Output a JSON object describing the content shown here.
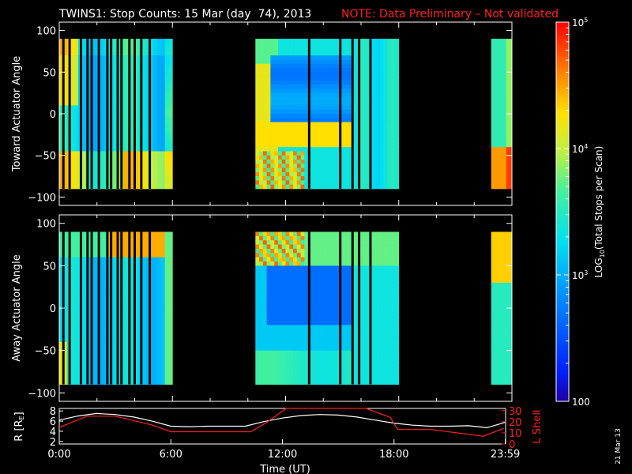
{
  "title": {
    "main": "TWINS1: Stop Counts: 15 Mar (day  74), 2013",
    "note": "NOTE: Data Preliminary – Not validated"
  },
  "date_stamp": "21 Mar 13",
  "colors": {
    "background": "#000000",
    "axis": "#ffffff",
    "note": "#ff2020",
    "lshell_line": "#ff2020",
    "r_line": "#ffffff"
  },
  "chart_data": [
    {
      "type": "heatmap",
      "ylabel": "Toward Actuator Angle",
      "yticks": [
        "100",
        "50",
        "0",
        "−50",
        "−100"
      ],
      "ylim": [
        -110,
        110
      ],
      "data_ylim": [
        -90,
        90
      ],
      "xlim_hours": [
        0,
        24
      ],
      "colorbar": {
        "label": "LOG10(Total Stops per Scan)",
        "ticks": [
          "10^5",
          "10^4",
          "10^3",
          "100"
        ],
        "range": [
          100,
          100000
        ],
        "scale": "log"
      },
      "data_intervals_hours": [
        [
          0.0,
          6.0
        ],
        [
          10.4,
          18.0
        ],
        [
          22.9,
          24.0
        ]
      ],
      "gap_columns_hours": [
        0.22,
        0.55,
        1.15,
        1.5,
        1.72,
        2.1,
        2.55,
        2.75,
        3.1,
        3.3,
        3.72,
        4.0,
        4.35,
        4.8,
        13.25,
        14.9,
        15.55,
        15.9,
        16.5
      ]
    },
    {
      "type": "heatmap",
      "ylabel": "Away Actuator Angle",
      "yticks": [
        "100",
        "50",
        "0",
        "−50",
        "−100"
      ],
      "ylim": [
        -110,
        110
      ],
      "data_ylim": [
        -90,
        90
      ],
      "xlim_hours": [
        0,
        24
      ],
      "data_intervals_hours": [
        [
          0.0,
          6.0
        ],
        [
          10.4,
          18.0
        ],
        [
          22.9,
          24.0
        ]
      ],
      "gap_columns_hours": [
        0.22,
        0.55,
        1.15,
        1.5,
        1.72,
        2.1,
        2.55,
        2.75,
        3.1,
        3.3,
        3.72,
        4.0,
        4.35,
        4.8,
        13.25,
        14.9,
        15.55,
        15.9,
        16.5
      ]
    },
    {
      "type": "line",
      "xlabel": "Time (UT)",
      "xticks": [
        "0:00",
        "6:00",
        "12:00",
        "18:00",
        "23:59"
      ],
      "xlim_hours": [
        0,
        24
      ],
      "ylabel_left": "R [R",
      "ylabel_left_sub": "E",
      "ylabel_left_close": "]",
      "yticks_left": [
        "8",
        "6",
        "4",
        "2"
      ],
      "ylim_left": [
        1.5,
        8.5
      ],
      "ylabel_right": "L Shell",
      "yticks_right": [
        "30",
        "20",
        "10",
        "0"
      ],
      "ylim_right": [
        0,
        32
      ],
      "series": [
        {
          "name": "R [RE]",
          "axis": "left",
          "x": [
            0,
            1,
            2,
            3,
            4,
            5,
            6,
            7,
            8,
            9,
            10,
            11,
            12,
            13,
            14,
            15,
            16,
            17,
            18,
            19,
            20,
            21,
            22,
            23,
            24
          ],
          "y": [
            6.2,
            7.0,
            7.5,
            7.3,
            6.8,
            6.0,
            5.0,
            4.9,
            5.0,
            5.0,
            5.0,
            5.9,
            6.6,
            7.1,
            7.3,
            7.2,
            6.8,
            6.2,
            5.6,
            5.2,
            5.0,
            5.0,
            5.1,
            4.7,
            5.8
          ]
        },
        {
          "name": "L Shell",
          "axis": "right",
          "x": [
            0,
            1.5,
            3,
            5,
            6,
            8,
            10.3,
            11.2,
            12.2,
            13.5,
            16.5,
            17.8,
            18.2,
            20,
            22.8,
            23.9
          ],
          "y": [
            15,
            25,
            25,
            17,
            11,
            11,
            11,
            20,
            33,
            33,
            33,
            24,
            13,
            13,
            7,
            14
          ]
        }
      ]
    }
  ]
}
